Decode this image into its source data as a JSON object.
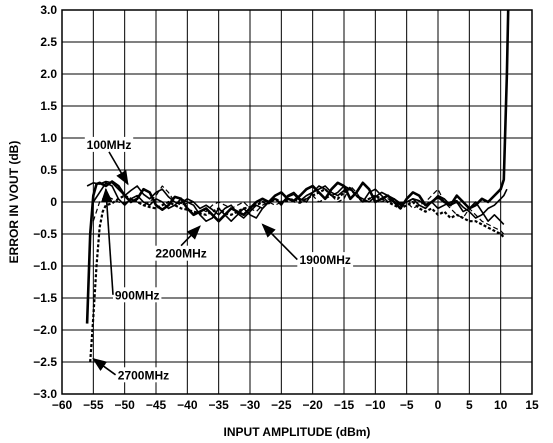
{
  "chart_data": {
    "type": "line",
    "title": "",
    "xlabel": "INPUT AMPLITUDE (dBm)",
    "ylabel": "ERROR IN VOUT (dB)",
    "xlim": [
      -60,
      15
    ],
    "ylim": [
      -3.0,
      3.0
    ],
    "x_ticks": [
      "−60",
      "−55",
      "−50",
      "−45",
      "−40",
      "−35",
      "−30",
      "−25",
      "−20",
      "−15",
      "−10",
      "−5",
      "0",
      "5",
      "10",
      "15"
    ],
    "y_ticks": [
      "3.0",
      "2.5",
      "2.0",
      "1.5",
      "1.0",
      "0.5",
      "0",
      "−0.5",
      "−1.0",
      "−1.5",
      "−2.0",
      "−2.5",
      "−3.0"
    ],
    "grid": true,
    "series": [
      {
        "name": "100MHz",
        "style": "solid",
        "x": [
          -56,
          -55,
          -54,
          -53,
          -52,
          -51,
          -50,
          -49,
          -48,
          -47,
          -46,
          -45,
          -44,
          -43,
          -42,
          -41,
          -40,
          -39,
          -38,
          -37,
          -36,
          -35,
          -34,
          -33,
          -32,
          -31,
          -30,
          -29,
          -28,
          -27,
          -26,
          -25,
          -24,
          -23,
          -22,
          -21,
          -20,
          -19,
          -18,
          -17,
          -16,
          -15,
          -14,
          -13,
          -12,
          -11,
          -10,
          -9,
          -8,
          -7,
          -6,
          -5,
          -4,
          -3,
          -2,
          -1,
          0,
          1,
          2,
          3,
          4,
          5,
          6,
          7,
          8,
          9,
          10,
          10.5,
          11
        ],
        "y": [
          0.25,
          0.3,
          0.28,
          0.32,
          0.3,
          0.2,
          0.1,
          0.18,
          0.25,
          0.12,
          0.05,
          0.15,
          0.2,
          0.08,
          0.0,
          -0.02,
          0.05,
          0.0,
          -0.1,
          -0.05,
          -0.12,
          -0.2,
          -0.1,
          -0.05,
          -0.18,
          -0.25,
          -0.15,
          -0.05,
          -0.1,
          0.0,
          0.05,
          -0.02,
          0.08,
          0.12,
          0.02,
          0.1,
          0.15,
          0.2,
          0.25,
          0.15,
          0.1,
          0.18,
          0.22,
          0.1,
          0.05,
          0.0,
          0.08,
          0.15,
          0.1,
          0.05,
          -0.02,
          0.0,
          0.05,
          0.02,
          -0.05,
          0.0,
          -0.1,
          -0.05,
          0.0,
          0.02,
          -0.08,
          -0.15,
          -0.25,
          -0.2,
          -0.1,
          -0.05,
          0.05,
          0.1,
          0.2
        ]
      },
      {
        "name": "900MHz",
        "style": "solid-bold",
        "x": [
          -56,
          -55.5,
          -55,
          -54.5,
          -54,
          -53,
          -52,
          -51,
          -50,
          -49,
          -48,
          -47,
          -46,
          -45,
          -44,
          -43,
          -42,
          -41,
          -40,
          -39,
          -38,
          -37,
          -36,
          -35,
          -34,
          -33,
          -32,
          -31,
          -30,
          -29,
          -28,
          -27,
          -26,
          -25,
          -24,
          -23,
          -22,
          -21,
          -20,
          -19,
          -18,
          -17,
          -16,
          -15,
          -14,
          -13,
          -12,
          -11,
          -10,
          -9,
          -8,
          -7,
          -6,
          -5,
          -4,
          -3,
          -2,
          -1,
          0,
          1,
          2,
          3,
          4,
          5,
          6,
          7,
          8,
          9,
          10,
          10.5,
          11,
          11.2
        ],
        "y": [
          -1.9,
          -0.5,
          0.1,
          0.28,
          0.3,
          0.25,
          0.32,
          0.25,
          0.1,
          0.0,
          0.05,
          0.2,
          0.15,
          -0.05,
          -0.12,
          -0.05,
          0.08,
          0.05,
          -0.1,
          -0.2,
          -0.15,
          -0.1,
          -0.2,
          -0.3,
          -0.2,
          -0.1,
          -0.15,
          -0.2,
          -0.1,
          0.0,
          0.05,
          0.0,
          0.1,
          0.15,
          0.05,
          0.02,
          0.1,
          0.2,
          0.25,
          0.15,
          0.05,
          0.2,
          0.3,
          0.25,
          0.05,
          0.15,
          0.3,
          0.2,
          0.0,
          0.05,
          0.1,
          0.0,
          -0.1,
          0.05,
          0.15,
          0.1,
          -0.05,
          0.0,
          0.08,
          0.0,
          -0.05,
          0.1,
          0.0,
          -0.1,
          -0.05,
          0.05,
          0.0,
          0.1,
          0.2,
          0.35,
          2.0,
          3.0
        ]
      },
      {
        "name": "1900MHz",
        "style": "solid",
        "x": [
          -55,
          -54,
          -53,
          -52,
          -51,
          -50,
          -49,
          -48,
          -47,
          -46,
          -45,
          -44,
          -43,
          -42,
          -41,
          -40,
          -39,
          -38,
          -37,
          -36,
          -35,
          -34,
          -33,
          -32,
          -31,
          -30,
          -29,
          -28,
          -27,
          -26,
          -25,
          -24,
          -23,
          -22,
          -21,
          -20,
          -19,
          -18,
          -17,
          -16,
          -15,
          -14,
          -13,
          -12,
          -11,
          -10,
          -9,
          -8,
          -7,
          -6,
          -5,
          -4,
          -3,
          -2,
          -1,
          0,
          1,
          2,
          3,
          4,
          5,
          6,
          7,
          8,
          9,
          10,
          10.5
        ],
        "y": [
          0.0,
          0.15,
          0.3,
          0.25,
          0.05,
          -0.05,
          0.05,
          0.1,
          0.0,
          -0.05,
          0.05,
          0.0,
          -0.1,
          -0.05,
          0.05,
          0.0,
          -0.05,
          -0.2,
          -0.3,
          -0.25,
          -0.1,
          -0.2,
          -0.3,
          -0.2,
          -0.1,
          -0.2,
          -0.25,
          -0.1,
          0.0,
          0.05,
          -0.05,
          0.1,
          0.15,
          0.05,
          0.0,
          0.15,
          0.25,
          0.2,
          0.1,
          0.15,
          0.25,
          0.2,
          0.1,
          0.0,
          0.15,
          0.2,
          0.1,
          0.0,
          0.05,
          -0.05,
          0.0,
          0.05,
          -0.05,
          -0.1,
          0.0,
          0.1,
          0.05,
          -0.05,
          0.0,
          -0.15,
          -0.1,
          0.0,
          -0.15,
          -0.3,
          -0.2,
          -0.3,
          -0.35
        ]
      },
      {
        "name": "2200MHz",
        "style": "dashed",
        "x": [
          -55,
          -54,
          -53,
          -52,
          -51,
          -50,
          -49,
          -48,
          -47,
          -46,
          -45,
          -44,
          -43,
          -42,
          -41,
          -40,
          -39,
          -38,
          -37,
          -36,
          -35,
          -34,
          -33,
          -32,
          -31,
          -30,
          -29,
          -28,
          -27,
          -26,
          -25,
          -24,
          -23,
          -22,
          -21,
          -20,
          -19,
          -18,
          -17,
          -16,
          -15,
          -14,
          -13,
          -12,
          -11,
          -10,
          -9,
          -8,
          -7,
          -6,
          -5,
          -4,
          -3,
          -2,
          -1,
          0,
          1,
          2,
          3,
          4,
          5,
          6,
          7,
          8,
          9,
          10,
          10.5
        ],
        "y": [
          -0.3,
          0.0,
          0.1,
          0.05,
          0.0,
          -0.02,
          0.05,
          0.0,
          -0.05,
          0.0,
          0.1,
          0.25,
          0.15,
          0.0,
          -0.05,
          -0.02,
          0.0,
          -0.1,
          -0.15,
          -0.05,
          0.0,
          -0.05,
          -0.1,
          -0.05,
          0.0,
          -0.1,
          -0.15,
          -0.05,
          0.0,
          -0.05,
          0.0,
          0.05,
          0.0,
          -0.02,
          0.05,
          0.1,
          0.0,
          0.05,
          0.1,
          0.0,
          0.05,
          0.25,
          0.15,
          0.0,
          0.05,
          0.1,
          0.0,
          0.05,
          0.0,
          -0.05,
          0.0,
          -0.1,
          -0.05,
          0.0,
          0.1,
          0.2,
          0.0,
          -0.1,
          -0.2,
          -0.25,
          -0.1,
          -0.2,
          -0.3,
          -0.35,
          -0.4,
          -0.45,
          -0.5
        ]
      },
      {
        "name": "2700MHz",
        "style": "dotted",
        "x": [
          -55.5,
          -55,
          -54.5,
          -54,
          -53.5,
          -53,
          -52,
          -51,
          -50,
          -49,
          -48,
          -47,
          -46,
          -45,
          -44,
          -43,
          -42,
          -41,
          -40,
          -39,
          -38,
          -37,
          -36,
          -35,
          -34,
          -33,
          -32,
          -31,
          -30,
          -29,
          -28,
          -27,
          -26,
          -25,
          -24,
          -23,
          -22,
          -21,
          -20,
          -19,
          -18,
          -17,
          -16,
          -15,
          -14,
          -13,
          -12,
          -11,
          -10,
          -9,
          -8,
          -7,
          -6,
          -5,
          -4,
          -3,
          -2,
          -1,
          0,
          1,
          2,
          3,
          4,
          5,
          6,
          7,
          8,
          9,
          10,
          10.5
        ],
        "y": [
          -2.5,
          -1.8,
          -1.0,
          -0.4,
          -0.15,
          -0.05,
          -0.02,
          0.05,
          0.1,
          0.05,
          0.0,
          -0.05,
          -0.08,
          -0.1,
          -0.05,
          0.0,
          -0.05,
          -0.1,
          -0.12,
          -0.15,
          -0.18,
          -0.2,
          -0.15,
          -0.1,
          -0.18,
          -0.2,
          -0.15,
          -0.1,
          -0.08,
          -0.05,
          0.0,
          -0.02,
          0.05,
          0.0,
          0.02,
          0.05,
          0.0,
          0.05,
          0.1,
          0.15,
          0.2,
          0.1,
          0.05,
          0.15,
          0.2,
          0.1,
          0.0,
          0.05,
          0.1,
          0.05,
          0.0,
          -0.05,
          -0.1,
          -0.05,
          0.0,
          -0.1,
          -0.15,
          -0.1,
          -0.2,
          -0.15,
          -0.25,
          -0.2,
          -0.25,
          -0.3,
          -0.3,
          -0.35,
          -0.4,
          -0.45,
          -0.5,
          -0.55
        ]
      }
    ],
    "annotations": [
      {
        "text": "100MHz",
        "x": -52.5,
        "y": 0.9,
        "target": [
          -49.5,
          0.28
        ]
      },
      {
        "text": "900MHz",
        "x": -48,
        "y": -1.45,
        "target": [
          -53,
          0.2
        ]
      },
      {
        "text": "2200MHz",
        "x": -41,
        "y": -0.8,
        "target": [
          -38,
          -0.38
        ]
      },
      {
        "text": "1900MHz",
        "x": -18,
        "y": -0.9,
        "target": [
          -28,
          -0.35
        ]
      },
      {
        "text": "2700MHz",
        "x": -47,
        "y": -2.7,
        "target": [
          -55,
          -2.45
        ]
      }
    ]
  }
}
